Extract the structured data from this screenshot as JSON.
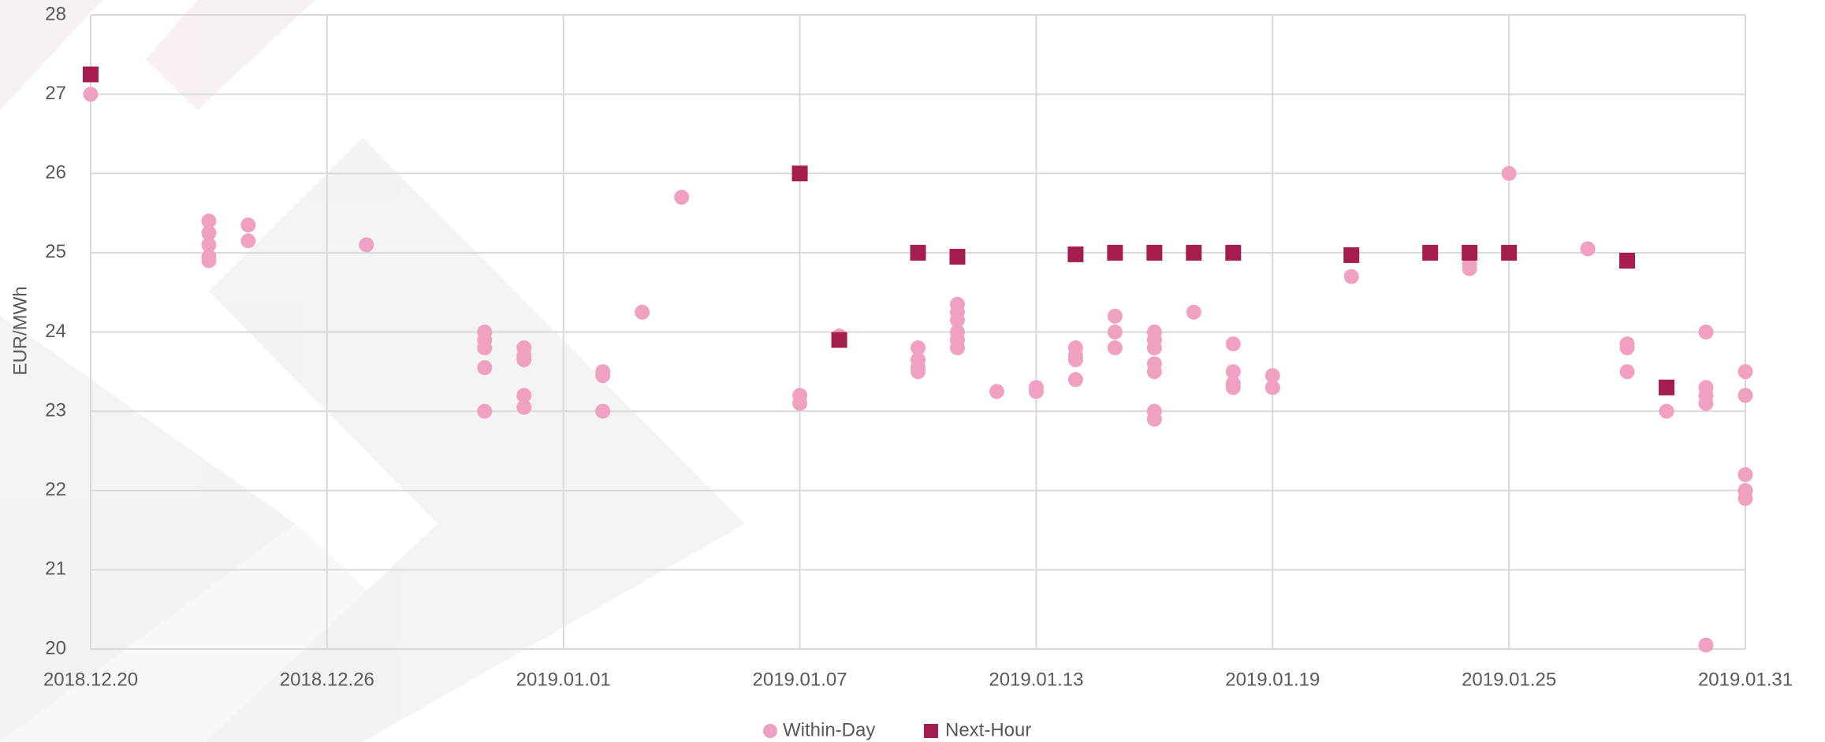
{
  "chart_data": {
    "type": "scatter",
    "y_label": "EUR/MWh",
    "xlim": [
      "2018.12.20",
      "2019.01.31"
    ],
    "xticks": [
      "2018.12.20",
      "2018.12.26",
      "2019.01.01",
      "2019.01.07",
      "2019.01.13",
      "2019.01.19",
      "2019.01.25",
      "2019.01.31"
    ],
    "ylim": [
      20,
      28
    ],
    "yticks": [
      20,
      21,
      22,
      23,
      24,
      25,
      26,
      27,
      28
    ],
    "grid": true,
    "legend": "bottom",
    "series": [
      {
        "name": "Within-Day",
        "color": "#f0a0c0",
        "marker": "circle",
        "x": [
          "2018.12.20",
          "2018.12.23",
          "2018.12.23",
          "2018.12.23",
          "2018.12.23",
          "2018.12.23",
          "2018.12.24",
          "2018.12.24",
          "2018.12.27",
          "2018.12.30",
          "2018.12.30",
          "2018.12.30",
          "2018.12.30",
          "2018.12.30",
          "2018.12.31",
          "2018.12.31",
          "2018.12.31",
          "2018.12.31",
          "2018.12.31",
          "2019.01.02",
          "2019.01.02",
          "2019.01.02",
          "2019.01.03",
          "2019.01.04",
          "2019.01.07",
          "2019.01.07",
          "2019.01.08",
          "2019.01.10",
          "2019.01.10",
          "2019.01.10",
          "2019.01.10",
          "2019.01.11",
          "2019.01.11",
          "2019.01.11",
          "2019.01.11",
          "2019.01.11",
          "2019.01.11",
          "2019.01.12",
          "2019.01.13",
          "2019.01.13",
          "2019.01.14",
          "2019.01.14",
          "2019.01.14",
          "2019.01.14",
          "2019.01.15",
          "2019.01.15",
          "2019.01.15",
          "2019.01.16",
          "2019.01.16",
          "2019.01.16",
          "2019.01.16",
          "2019.01.16",
          "2019.01.16",
          "2019.01.16",
          "2019.01.17",
          "2019.01.18",
          "2019.01.18",
          "2019.01.18",
          "2019.01.18",
          "2019.01.19",
          "2019.01.19",
          "2019.01.21",
          "2019.01.24",
          "2019.01.24",
          "2019.01.25",
          "2019.01.27",
          "2019.01.28",
          "2019.01.28",
          "2019.01.28",
          "2019.01.29",
          "2019.01.30",
          "2019.01.30",
          "2019.01.30",
          "2019.01.30",
          "2019.01.30",
          "2019.01.31",
          "2019.01.31",
          "2019.01.31",
          "2019.01.31",
          "2019.01.31"
        ],
        "values": [
          27.0,
          25.4,
          25.25,
          25.1,
          24.95,
          24.9,
          25.35,
          25.15,
          25.1,
          24.0,
          23.9,
          23.8,
          23.55,
          23.0,
          23.8,
          23.7,
          23.65,
          23.2,
          23.05,
          23.5,
          23.45,
          23.0,
          24.25,
          25.7,
          23.2,
          23.1,
          23.95,
          23.8,
          23.65,
          23.55,
          23.5,
          24.35,
          24.25,
          24.15,
          24.0,
          23.9,
          23.8,
          23.25,
          23.3,
          23.25,
          23.8,
          23.7,
          23.65,
          23.4,
          24.2,
          24.0,
          23.8,
          24.0,
          23.9,
          23.8,
          23.6,
          23.5,
          23.0,
          22.9,
          24.25,
          23.85,
          23.5,
          23.35,
          23.3,
          23.45,
          23.3,
          24.7,
          24.85,
          24.8,
          26.0,
          25.05,
          23.85,
          23.8,
          23.5,
          23.0,
          24.0,
          23.3,
          23.2,
          23.1,
          20.05,
          23.5,
          23.2,
          22.2,
          22.0,
          21.9
        ]
      },
      {
        "name": "Next-Hour",
        "color": "#a51c4e",
        "marker": "square",
        "x": [
          "2018.12.20",
          "2019.01.07",
          "2019.01.08",
          "2019.01.10",
          "2019.01.11",
          "2019.01.14",
          "2019.01.15",
          "2019.01.16",
          "2019.01.17",
          "2019.01.18",
          "2019.01.21",
          "2019.01.23",
          "2019.01.24",
          "2019.01.25",
          "2019.01.28",
          "2019.01.29"
        ],
        "values": [
          27.25,
          26.0,
          23.9,
          25.0,
          24.95,
          24.98,
          25.0,
          25.0,
          25.0,
          25.0,
          24.97,
          25.0,
          25.0,
          25.0,
          24.9,
          23.3
        ]
      }
    ]
  }
}
